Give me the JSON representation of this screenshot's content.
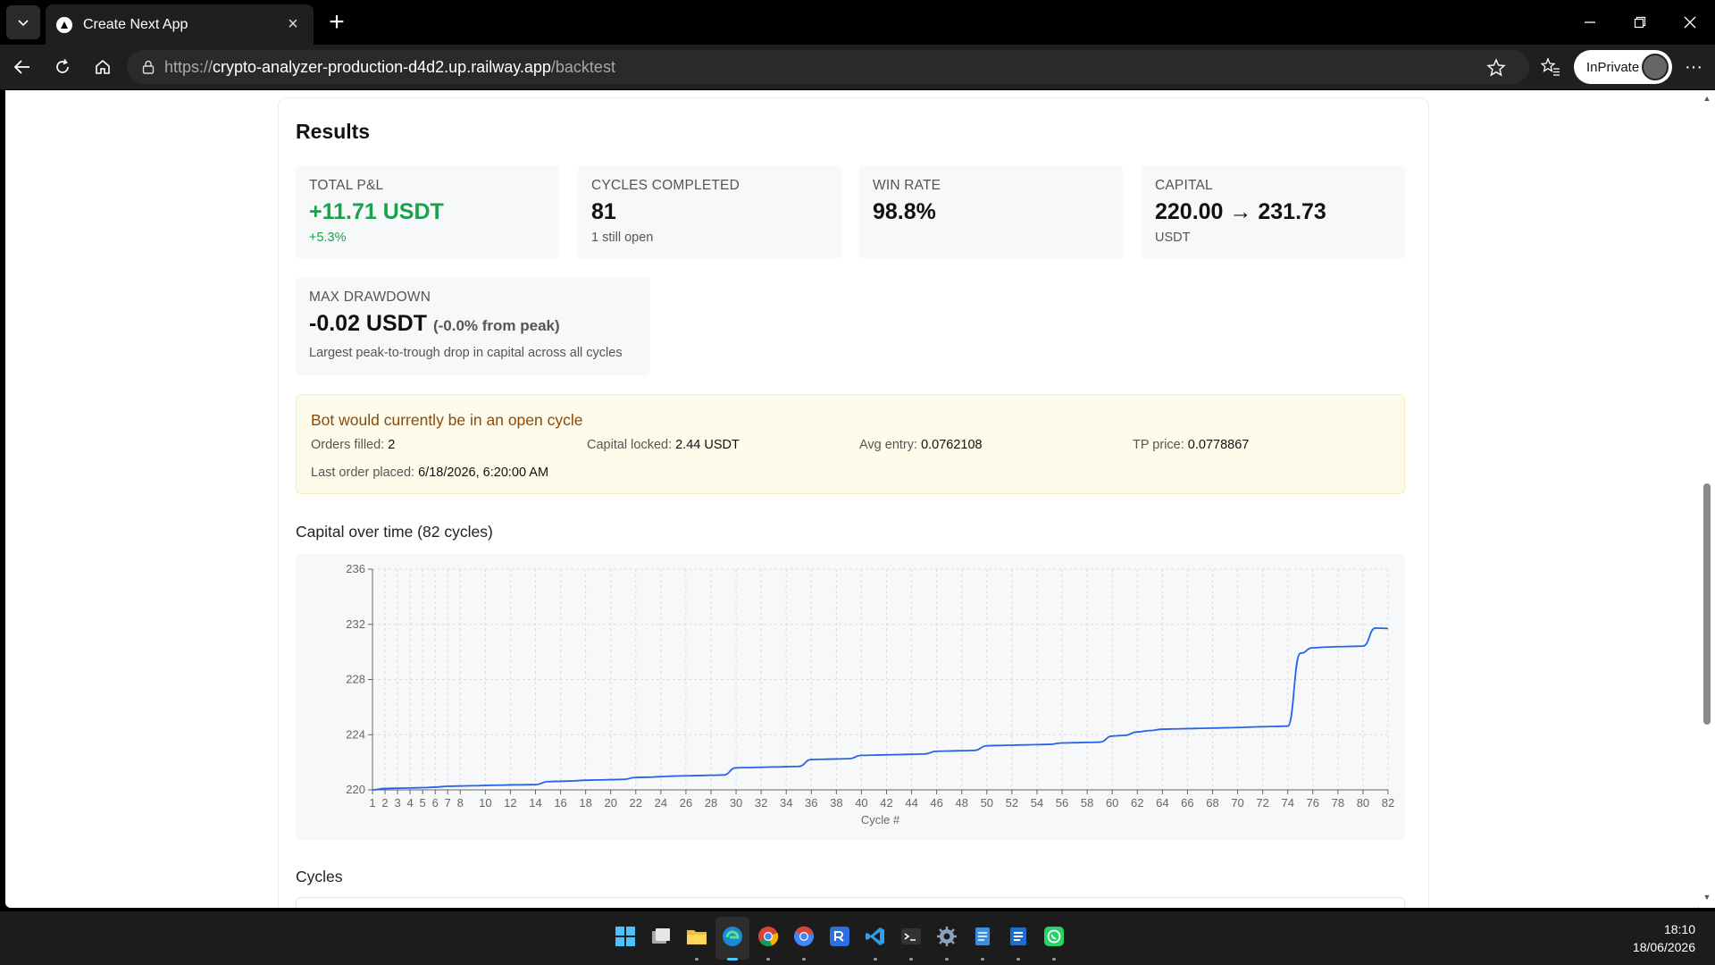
{
  "browser": {
    "tab_title": "Create Next App",
    "url_prefix": "https://",
    "url_host": "crypto-analyzer-production-d4d2.up.railway.app",
    "url_path": "/backtest",
    "private_label": "InPrivate"
  },
  "results": {
    "title": "Results",
    "stats": [
      {
        "label": "TOTAL P&L",
        "value": "+11.71 USDT",
        "sub": "+5.3%"
      },
      {
        "label": "CYCLES COMPLETED",
        "value": "81",
        "sub": "1 still open"
      },
      {
        "label": "WIN RATE",
        "value": "98.8%",
        "sub": ""
      },
      {
        "label": "CAPITAL",
        "value": "220.00 → 231.73",
        "sub": "USDT"
      }
    ],
    "drawdown": {
      "label": "MAX DRAWDOWN",
      "value": "-0.02 USDT",
      "paren": "(-0.0% from peak)",
      "sub": "Largest peak-to-trough drop in capital across all cycles"
    }
  },
  "open_cycle": {
    "title": "Bot would currently be in an open cycle",
    "orders_label": "Orders filled:",
    "orders_value": "2",
    "capital_label": "Capital locked:",
    "capital_value": "2.44 USDT",
    "avg_label": "Avg entry:",
    "avg_value": "0.0762108",
    "tp_label": "TP price:",
    "tp_value": "0.0778867",
    "last_label": "Last order placed:",
    "last_value": "6/18/2026, 6:20:00 AM"
  },
  "chart_title": "Capital over time (82 cycles)",
  "chart_data": {
    "type": "line",
    "xlabel": "Cycle #",
    "ylabel": "",
    "xlim": [
      1,
      82
    ],
    "ylim": [
      220,
      236
    ],
    "yticks": [
      220,
      224,
      228,
      232,
      236
    ],
    "xticks": [
      1,
      2,
      3,
      4,
      5,
      6,
      7,
      8,
      10,
      12,
      14,
      16,
      18,
      20,
      22,
      24,
      26,
      28,
      30,
      32,
      34,
      36,
      38,
      40,
      42,
      44,
      46,
      48,
      50,
      52,
      54,
      56,
      58,
      60,
      62,
      64,
      66,
      68,
      70,
      72,
      74,
      76,
      78,
      80,
      82
    ],
    "grid": true,
    "color": "#2563eb",
    "x": [
      1,
      2,
      3,
      4,
      5,
      6,
      7,
      8,
      9,
      10,
      11,
      12,
      13,
      14,
      15,
      16,
      17,
      18,
      19,
      20,
      21,
      22,
      23,
      24,
      25,
      26,
      27,
      28,
      29,
      30,
      31,
      32,
      33,
      34,
      35,
      36,
      37,
      38,
      39,
      40,
      41,
      42,
      43,
      44,
      45,
      46,
      47,
      48,
      49,
      50,
      51,
      52,
      53,
      54,
      55,
      56,
      57,
      58,
      59,
      60,
      61,
      62,
      63,
      64,
      65,
      66,
      67,
      68,
      69,
      70,
      71,
      72,
      73,
      74,
      75,
      76,
      77,
      78,
      79,
      80,
      81,
      82
    ],
    "values": [
      220.0,
      220.1,
      220.12,
      220.14,
      220.16,
      220.2,
      220.26,
      220.28,
      220.3,
      220.32,
      220.34,
      220.36,
      220.37,
      220.38,
      220.6,
      220.62,
      220.65,
      220.7,
      220.72,
      220.74,
      220.76,
      220.9,
      220.92,
      220.96,
      221.0,
      221.02,
      221.04,
      221.06,
      221.08,
      221.6,
      221.62,
      221.64,
      221.66,
      221.68,
      221.7,
      222.2,
      222.22,
      222.24,
      222.26,
      222.5,
      222.52,
      222.54,
      222.56,
      222.58,
      222.6,
      222.8,
      222.82,
      222.84,
      222.86,
      223.2,
      223.22,
      223.24,
      223.26,
      223.28,
      223.3,
      223.4,
      223.42,
      223.44,
      223.46,
      223.9,
      223.95,
      224.2,
      224.3,
      224.4,
      224.42,
      224.44,
      224.46,
      224.48,
      224.5,
      224.52,
      224.55,
      224.58,
      224.6,
      224.62,
      229.9,
      230.3,
      230.35,
      230.38,
      230.4,
      230.42,
      231.73,
      231.7
    ]
  },
  "cycles_title": "Cycles",
  "taskbar": {
    "time": "18:10",
    "date": "18/06/2026"
  },
  "colors": {
    "accent_green": "#16a34a",
    "line_blue": "#2563eb",
    "warning_bg": "#fefbea",
    "warning_text": "#8a4b0a"
  }
}
